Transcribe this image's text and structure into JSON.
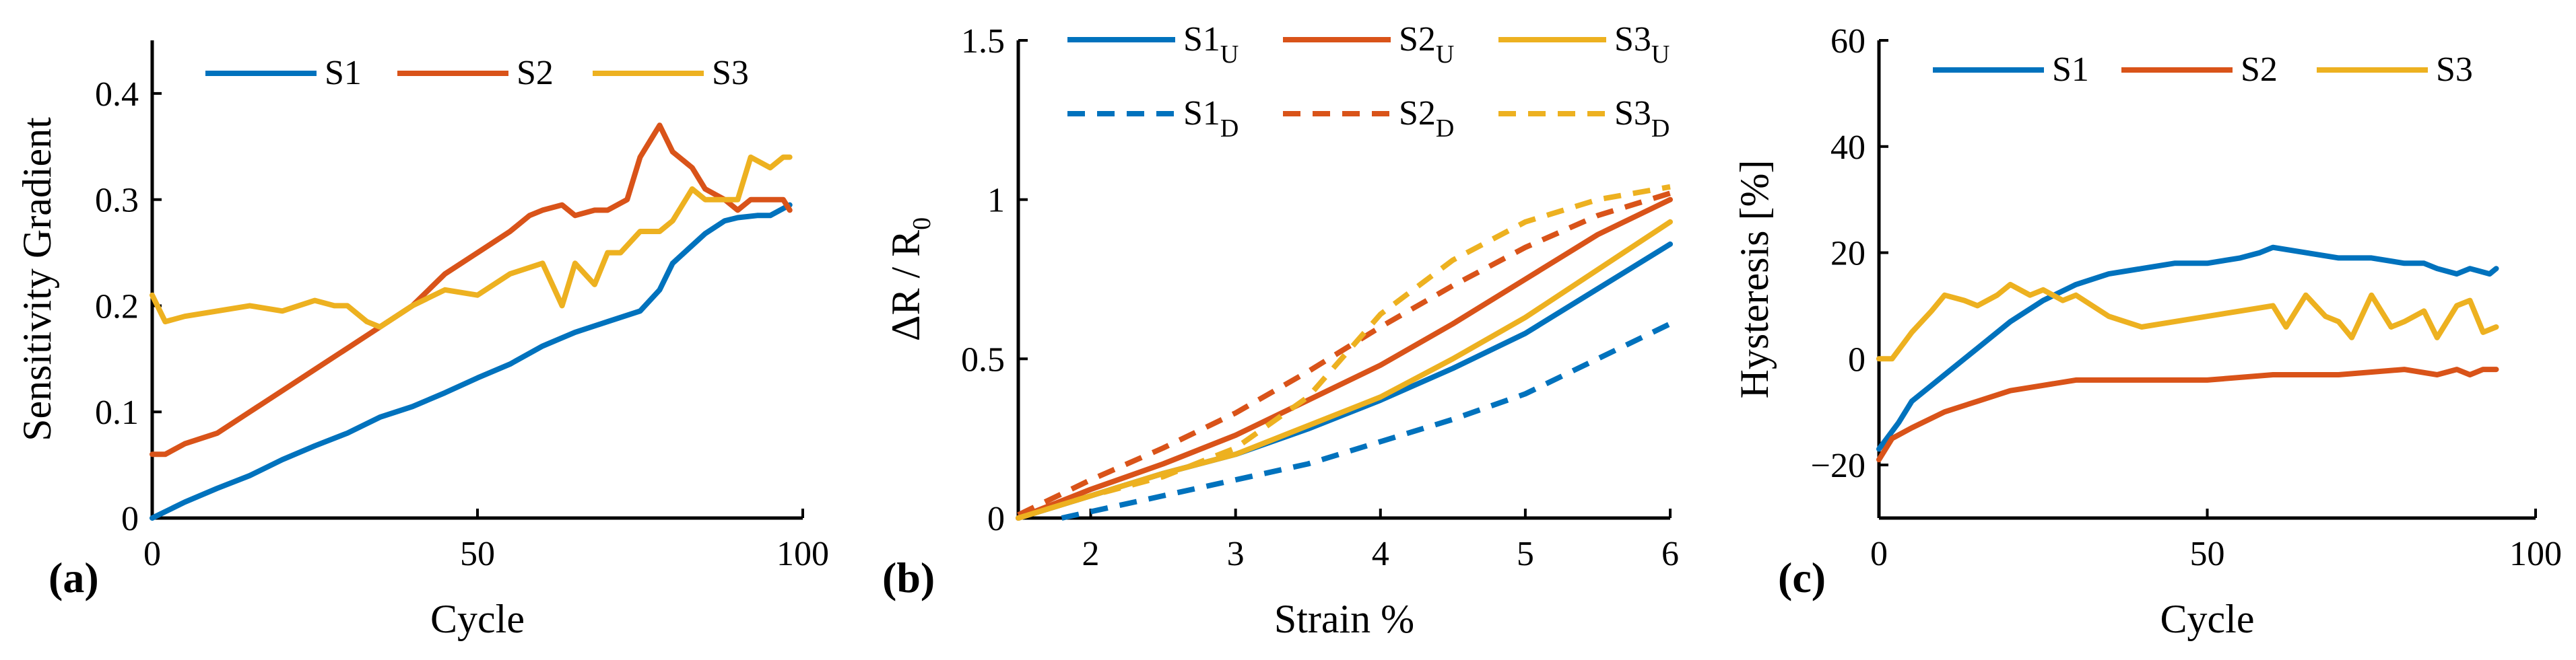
{
  "colors": {
    "S1": "#0072BD",
    "S2": "#D95319",
    "S3": "#EDB120"
  },
  "chart_data": [
    {
      "type": "line",
      "panel_label": "(a)",
      "title": "",
      "xlabel": "Cycle",
      "ylabel": "Sensitivity Gradient",
      "xlim": [
        0,
        100
      ],
      "ylim": [
        0,
        0.45
      ],
      "xticks": [
        0,
        50,
        100
      ],
      "xtick_labels": [
        "0",
        "50",
        "100"
      ],
      "yticks": [
        0,
        0.1,
        0.2,
        0.3,
        0.4
      ],
      "ytick_labels": [
        "0",
        "0.1",
        "0.2",
        "0.3",
        "0.4"
      ],
      "legend": {
        "location": "top",
        "orientation": "horizontal"
      },
      "series": [
        {
          "name": "S1",
          "label": "S1",
          "dashed": false,
          "x": [
            0,
            5,
            10,
            15,
            20,
            25,
            30,
            35,
            40,
            45,
            50,
            55,
            60,
            65,
            70,
            75,
            78,
            80,
            85,
            88,
            90,
            93,
            95,
            98
          ],
          "y": [
            0,
            0.015,
            0.028,
            0.04,
            0.055,
            0.068,
            0.08,
            0.095,
            0.105,
            0.118,
            0.132,
            0.145,
            0.162,
            0.175,
            0.185,
            0.195,
            0.215,
            0.24,
            0.268,
            0.28,
            0.283,
            0.285,
            0.285,
            0.295
          ]
        },
        {
          "name": "S2",
          "label": "S2",
          "dashed": false,
          "x": [
            0,
            2,
            5,
            10,
            15,
            20,
            25,
            30,
            35,
            40,
            45,
            50,
            55,
            58,
            60,
            63,
            65,
            68,
            70,
            73,
            75,
            77,
            78,
            80,
            83,
            85,
            88,
            90,
            92,
            95,
            97,
            98
          ],
          "y": [
            0.06,
            0.06,
            0.07,
            0.08,
            0.1,
            0.12,
            0.14,
            0.16,
            0.18,
            0.2,
            0.23,
            0.25,
            0.27,
            0.285,
            0.29,
            0.295,
            0.285,
            0.29,
            0.29,
            0.3,
            0.34,
            0.36,
            0.37,
            0.345,
            0.33,
            0.31,
            0.3,
            0.29,
            0.3,
            0.3,
            0.3,
            0.29
          ]
        },
        {
          "name": "S3",
          "label": "S3",
          "dashed": false,
          "x": [
            0,
            2,
            5,
            10,
            15,
            20,
            25,
            28,
            30,
            33,
            35,
            40,
            45,
            50,
            55,
            60,
            63,
            65,
            68,
            70,
            72,
            75,
            78,
            80,
            83,
            85,
            88,
            90,
            92,
            95,
            97,
            98
          ],
          "y": [
            0.21,
            0.185,
            0.19,
            0.195,
            0.2,
            0.195,
            0.205,
            0.2,
            0.2,
            0.185,
            0.18,
            0.2,
            0.215,
            0.21,
            0.23,
            0.24,
            0.2,
            0.24,
            0.22,
            0.25,
            0.25,
            0.27,
            0.27,
            0.28,
            0.31,
            0.3,
            0.3,
            0.3,
            0.34,
            0.33,
            0.34,
            0.34
          ]
        }
      ]
    },
    {
      "type": "line",
      "panel_label": "(b)",
      "title": "",
      "xlabel": "Strain %",
      "ylabel": "ΔR / R",
      "ylabel_sub": "0",
      "xlim": [
        1.5,
        6
      ],
      "ylim": [
        0,
        1.5
      ],
      "xticks": [
        2,
        3,
        4,
        5,
        6
      ],
      "xtick_labels": [
        "2",
        "3",
        "4",
        "5",
        "6"
      ],
      "yticks": [
        0,
        0.5,
        1,
        1.5
      ],
      "ytick_labels": [
        "0",
        "0.5",
        "1",
        "1.5"
      ],
      "legend": {
        "location": "top",
        "orientation": "horizontal",
        "rows": 2
      },
      "series": [
        {
          "name": "S1_U",
          "label": "S1",
          "label_sub": "U",
          "color_key": "S1",
          "dashed": false,
          "x": [
            1.5,
            2,
            2.5,
            3,
            3.5,
            4,
            4.5,
            5,
            5.5,
            6
          ],
          "y": [
            0,
            0.07,
            0.14,
            0.2,
            0.28,
            0.37,
            0.47,
            0.58,
            0.72,
            0.86
          ]
        },
        {
          "name": "S2_U",
          "label": "S2",
          "label_sub": "U",
          "color_key": "S2",
          "dashed": false,
          "x": [
            1.5,
            2,
            2.5,
            3,
            3.5,
            4,
            4.5,
            5,
            5.5,
            6
          ],
          "y": [
            0,
            0.09,
            0.17,
            0.26,
            0.37,
            0.48,
            0.61,
            0.75,
            0.89,
            1.0
          ]
        },
        {
          "name": "S3_U",
          "label": "S3",
          "label_sub": "U",
          "color_key": "S3",
          "dashed": false,
          "x": [
            1.5,
            2,
            2.5,
            3,
            3.5,
            4,
            4.5,
            5,
            5.5,
            6
          ],
          "y": [
            0,
            0.07,
            0.14,
            0.2,
            0.29,
            0.38,
            0.5,
            0.63,
            0.78,
            0.93
          ]
        },
        {
          "name": "S1_D",
          "label": "S1",
          "label_sub": "D",
          "color_key": "S1",
          "dashed": true,
          "x": [
            1.8,
            2,
            2.5,
            3,
            3.5,
            4,
            4.5,
            5,
            5.5,
            6
          ],
          "y": [
            0,
            0.02,
            0.07,
            0.12,
            0.17,
            0.24,
            0.31,
            0.39,
            0.5,
            0.61
          ]
        },
        {
          "name": "S2_D",
          "label": "S2",
          "label_sub": "D",
          "color_key": "S2",
          "dashed": true,
          "x": [
            1.5,
            2,
            2.5,
            3,
            3.5,
            4,
            4.5,
            5,
            5.5,
            6
          ],
          "y": [
            0.01,
            0.12,
            0.22,
            0.33,
            0.46,
            0.6,
            0.73,
            0.85,
            0.95,
            1.02
          ]
        },
        {
          "name": "S3_D",
          "label": "S3",
          "label_sub": "D",
          "color_key": "S3",
          "dashed": true,
          "x": [
            1.5,
            2,
            2.5,
            3,
            3.5,
            4,
            4.5,
            5,
            5.5,
            6
          ],
          "y": [
            0,
            0.07,
            0.13,
            0.22,
            0.38,
            0.64,
            0.81,
            0.93,
            1.0,
            1.04
          ]
        }
      ]
    },
    {
      "type": "line",
      "panel_label": "(c)",
      "title": "",
      "xlabel": "Cycle",
      "ylabel": "Hysteresis [%]",
      "xlim": [
        0,
        100
      ],
      "ylim": [
        -30,
        60
      ],
      "xticks": [
        0,
        50,
        100
      ],
      "xtick_labels": [
        "0",
        "50",
        "100"
      ],
      "yticks": [
        -20,
        0,
        20,
        40,
        60
      ],
      "ytick_labels": [
        "−20",
        "0",
        "20",
        "40",
        "60"
      ],
      "legend": {
        "location": "top",
        "orientation": "horizontal"
      },
      "series": [
        {
          "name": "S1",
          "label": "S1",
          "dashed": false,
          "x": [
            0,
            3,
            5,
            8,
            10,
            15,
            20,
            25,
            30,
            35,
            40,
            45,
            50,
            55,
            58,
            60,
            65,
            70,
            75,
            80,
            83,
            85,
            88,
            90,
            93,
            94
          ],
          "y": [
            -17,
            -12,
            -8,
            -5,
            -3,
            2,
            7,
            11,
            14,
            16,
            17,
            18,
            18,
            19,
            20,
            21,
            20,
            19,
            19,
            18,
            18,
            17,
            16,
            17,
            16,
            17
          ]
        },
        {
          "name": "S2",
          "label": "S2",
          "dashed": false,
          "x": [
            0,
            2,
            5,
            10,
            15,
            20,
            25,
            30,
            40,
            50,
            60,
            70,
            80,
            85,
            88,
            90,
            92,
            94
          ],
          "y": [
            -19,
            -15,
            -13,
            -10,
            -8,
            -6,
            -5,
            -4,
            -4,
            -4,
            -3,
            -3,
            -2,
            -3,
            -2,
            -3,
            -2,
            -2
          ]
        },
        {
          "name": "S3",
          "label": "S3",
          "dashed": false,
          "x": [
            0,
            2,
            5,
            8,
            10,
            13,
            15,
            18,
            20,
            23,
            25,
            28,
            30,
            35,
            40,
            45,
            50,
            55,
            60,
            62,
            65,
            68,
            70,
            72,
            75,
            78,
            80,
            83,
            85,
            88,
            90,
            92,
            94
          ],
          "y": [
            0,
            0,
            5,
            9,
            12,
            11,
            10,
            12,
            14,
            12,
            13,
            11,
            12,
            8,
            6,
            7,
            8,
            9,
            10,
            6,
            12,
            8,
            7,
            4,
            12,
            6,
            7,
            9,
            4,
            10,
            11,
            5,
            6
          ]
        }
      ]
    }
  ]
}
